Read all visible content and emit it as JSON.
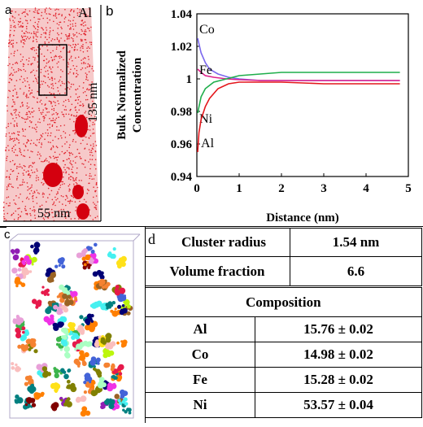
{
  "panels": {
    "a": {
      "label": "a",
      "element_label": "Al",
      "height_label": "135 nm",
      "width_label": "55 nm"
    },
    "b": {
      "label": "b"
    },
    "c": {
      "label": "c"
    },
    "d": {
      "label": "d",
      "rows": [
        {
          "label": "Cluster radius",
          "value": "1.54 nm"
        },
        {
          "label": "Volume fraction",
          "value": "6.6"
        }
      ],
      "composition_header": "Composition",
      "composition": [
        {
          "element": "Al",
          "value": "15.76 ± 0.02"
        },
        {
          "element": "Co",
          "value": "14.98 ± 0.02"
        },
        {
          "element": "Fe",
          "value": "15.28 ± 0.02"
        },
        {
          "element": "Ni",
          "value": "53.57 ± 0.04"
        }
      ]
    }
  },
  "chart_data": {
    "type": "line",
    "title": "",
    "xlabel": "Distance (nm)",
    "ylabel": "Bulk Normalized Concentration",
    "xlim": [
      0,
      5
    ],
    "ylim": [
      0.94,
      1.04
    ],
    "xticks": [
      "0",
      "1",
      "2",
      "3",
      "4",
      "5"
    ],
    "yticks": [
      "0.94",
      "0.96",
      "0.98",
      "1",
      "1.02",
      "1.04"
    ],
    "grid": false,
    "series": [
      {
        "name": "Co",
        "color": "#7b68ee",
        "x": [
          0.02,
          0.1,
          0.2,
          0.3,
          0.5,
          0.75,
          1.0,
          1.5,
          2.0,
          3.0,
          4.0,
          4.8
        ],
        "y": [
          1.025,
          1.016,
          1.01,
          1.006,
          1.003,
          1.001,
          1.0,
          0.999,
          0.999,
          0.999,
          0.999,
          0.999
        ]
      },
      {
        "name": "Fe",
        "color": "#e0218a",
        "x": [
          0.02,
          0.1,
          0.2,
          0.4,
          0.7,
          1.0,
          1.5,
          2.0,
          3.0,
          4.0,
          4.8
        ],
        "y": [
          1.006,
          1.004,
          1.002,
          1.001,
          1.0,
          0.9995,
          0.999,
          0.999,
          0.999,
          0.999,
          0.999
        ]
      },
      {
        "name": "Ni",
        "color": "#1fae4b",
        "x": [
          0.02,
          0.1,
          0.2,
          0.4,
          0.7,
          1.0,
          1.5,
          2.0,
          3.0,
          4.0,
          4.8
        ],
        "y": [
          0.979,
          0.989,
          0.994,
          0.998,
          1.0,
          1.002,
          1.003,
          1.004,
          1.004,
          1.004,
          1.004
        ]
      },
      {
        "name": "Al",
        "color": "#e4161b",
        "x": [
          0.02,
          0.05,
          0.1,
          0.2,
          0.3,
          0.5,
          0.75,
          1.0,
          1.5,
          2.0,
          3.0,
          4.0,
          4.8
        ],
        "y": [
          0.955,
          0.967,
          0.975,
          0.983,
          0.988,
          0.994,
          0.997,
          0.998,
          0.998,
          0.998,
          0.997,
          0.997,
          0.997
        ]
      }
    ]
  }
}
